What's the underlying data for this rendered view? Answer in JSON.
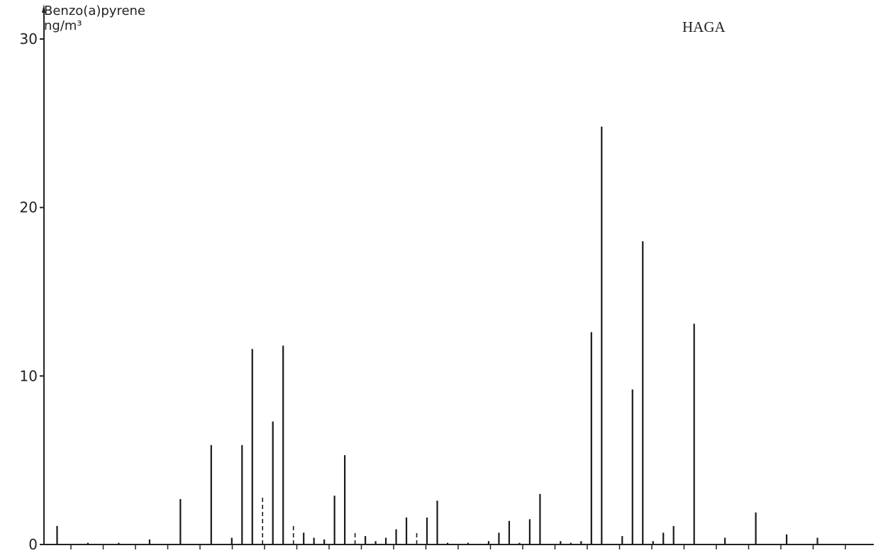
{
  "chart_data": {
    "type": "bar",
    "title": "HAGA",
    "ylabel_line1": "Benzo(a)pyrene",
    "ylabel_line2": "ng/m³",
    "xlabel": "",
    "ylim": [
      0,
      30
    ],
    "y_ticks": [
      {
        "value": 0,
        "label": "0"
      },
      {
        "value": 10,
        "label": "10"
      },
      {
        "value": 20,
        "label": "20"
      },
      {
        "value": 30,
        "label": "30"
      }
    ],
    "x_tick_count": 25,
    "samples_count": 80,
    "series": [
      {
        "style": "solid",
        "points": [
          {
            "x": 1,
            "y": 1.1
          },
          {
            "x": 4,
            "y": 0.1
          },
          {
            "x": 7,
            "y": 0.1
          },
          {
            "x": 10,
            "y": 0.3
          },
          {
            "x": 13,
            "y": 2.7
          },
          {
            "x": 16,
            "y": 5.9
          },
          {
            "x": 18,
            "y": 0.4
          },
          {
            "x": 19,
            "y": 5.9
          },
          {
            "x": 20,
            "y": 11.6
          },
          {
            "x": 22,
            "y": 7.3
          },
          {
            "x": 23,
            "y": 11.8
          },
          {
            "x": 25,
            "y": 0.7
          },
          {
            "x": 26,
            "y": 0.4
          },
          {
            "x": 27,
            "y": 0.3
          },
          {
            "x": 28,
            "y": 2.9
          },
          {
            "x": 29,
            "y": 5.3
          },
          {
            "x": 31,
            "y": 0.5
          },
          {
            "x": 32,
            "y": 0.2
          },
          {
            "x": 33,
            "y": 0.4
          },
          {
            "x": 34,
            "y": 0.9
          },
          {
            "x": 35,
            "y": 1.6
          },
          {
            "x": 37,
            "y": 1.6
          },
          {
            "x": 38,
            "y": 2.6
          },
          {
            "x": 39,
            "y": 0.1
          },
          {
            "x": 41,
            "y": 0.1
          },
          {
            "x": 43,
            "y": 0.2
          },
          {
            "x": 44,
            "y": 0.7
          },
          {
            "x": 45,
            "y": 1.4
          },
          {
            "x": 46,
            "y": 0.1
          },
          {
            "x": 47,
            "y": 1.5
          },
          {
            "x": 48,
            "y": 3.0
          },
          {
            "x": 50,
            "y": 0.2
          },
          {
            "x": 51,
            "y": 0.1
          },
          {
            "x": 52,
            "y": 0.2
          },
          {
            "x": 53,
            "y": 12.6
          },
          {
            "x": 54,
            "y": 24.8
          },
          {
            "x": 56,
            "y": 0.5
          },
          {
            "x": 57,
            "y": 9.2
          },
          {
            "x": 58,
            "y": 18.0
          },
          {
            "x": 59,
            "y": 0.2
          },
          {
            "x": 60,
            "y": 0.7
          },
          {
            "x": 61,
            "y": 1.1
          },
          {
            "x": 63,
            "y": 13.1
          },
          {
            "x": 66,
            "y": 0.4
          },
          {
            "x": 69,
            "y": 1.9
          },
          {
            "x": 72,
            "y": 0.6
          },
          {
            "x": 75,
            "y": 0.4
          }
        ]
      },
      {
        "style": "dashed",
        "points": [
          {
            "x": 21,
            "y": 2.8
          },
          {
            "x": 24,
            "y": 1.1
          },
          {
            "x": 30,
            "y": 0.7
          },
          {
            "x": 36,
            "y": 0.7
          }
        ]
      }
    ]
  }
}
